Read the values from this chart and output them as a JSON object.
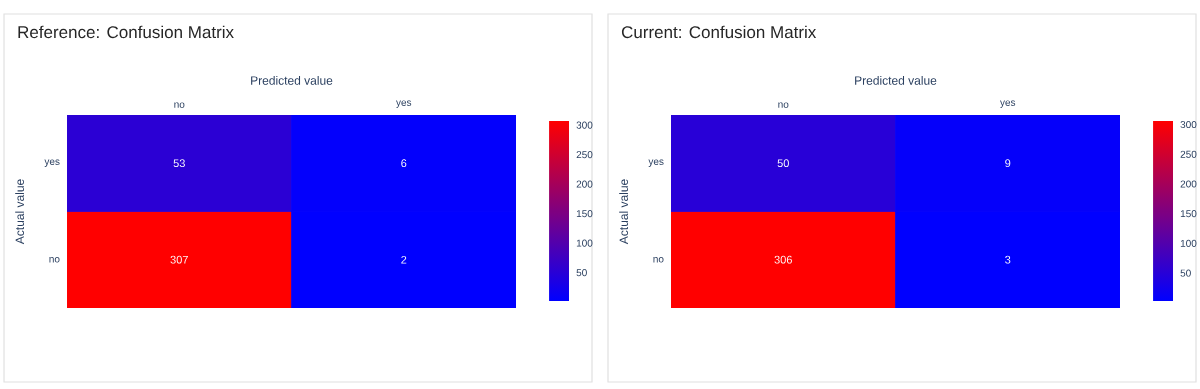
{
  "chart_data": [
    {
      "type": "heatmap",
      "title": "Reference: Confusion Matrix",
      "xlabel": "Predicted value",
      "ylabel": "Actual value",
      "categories": [
        "no",
        "yes"
      ],
      "y_categories": [
        "yes",
        "no"
      ],
      "cells": [
        [
          53,
          6
        ],
        [
          307,
          2
        ]
      ],
      "data_labels": true,
      "clim": [
        2,
        307
      ],
      "cticks": [
        50,
        100,
        150,
        200,
        250,
        300
      ]
    },
    {
      "type": "heatmap",
      "title": "Current: Confusion Matrix",
      "xlabel": "Predicted value",
      "ylabel": "Actual value",
      "categories": [
        "no",
        "yes"
      ],
      "y_categories": [
        "yes",
        "no"
      ],
      "cells": [
        [
          50,
          9
        ],
        [
          306,
          3
        ]
      ],
      "data_labels": true,
      "clim": [
        3,
        306
      ],
      "cticks": [
        50,
        100,
        150,
        200,
        250,
        300
      ]
    }
  ]
}
